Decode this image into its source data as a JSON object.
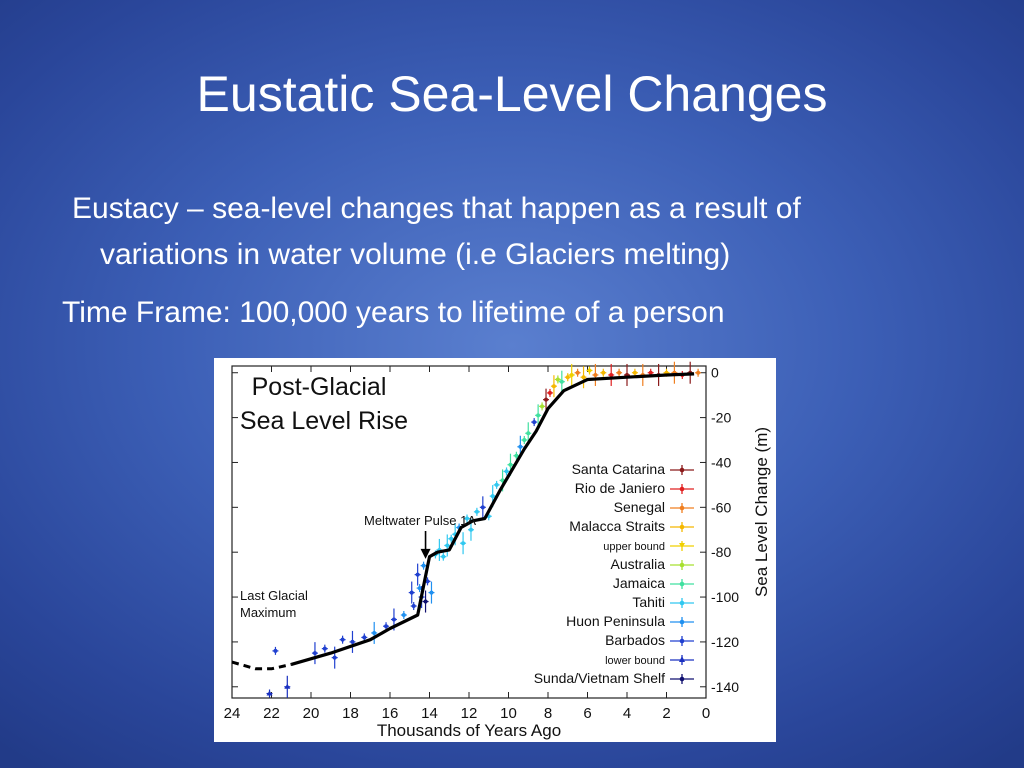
{
  "slide": {
    "title": "Eustatic Sea-Level Changes",
    "bullet_1_line_1": "Eustacy – sea-level changes that happen as a result of",
    "bullet_1_line_2": "variations in water volume (i.e Glaciers melting)",
    "bullet_2": "Time Frame: 100,000 years to lifetime of a person"
  },
  "chart_data": {
    "type": "scatter",
    "title": "Post-Glacial Sea Level Rise",
    "xlabel": "Thousands of Years Ago",
    "ylabel": "Sea Level Change (m)",
    "xlim": [
      24,
      0
    ],
    "ylim": [
      -145,
      3
    ],
    "x_ticks": [
      24,
      22,
      20,
      18,
      16,
      14,
      12,
      10,
      8,
      6,
      4,
      2,
      0
    ],
    "y_ticks": [
      0,
      -20,
      -40,
      -60,
      -80,
      -100,
      -120,
      -140
    ],
    "annotations": [
      {
        "text": "Meltwater Pulse 1A",
        "x": 14.2,
        "y": -83
      },
      {
        "text_lines": [
          "Last Glacial",
          "Maximum"
        ],
        "x": 21,
        "y": -125
      }
    ],
    "legend": [
      {
        "label": "Santa Catarina",
        "color": "#8b1a1a"
      },
      {
        "label": "Rio de Janiero",
        "color": "#e02020"
      },
      {
        "label": "Senegal",
        "color": "#f07f20"
      },
      {
        "label": "Malacca Straits",
        "color": "#f5b800"
      },
      {
        "label": "upper bound",
        "color": "#f0d000",
        "small": true
      },
      {
        "label": "Australia",
        "color": "#a8e030"
      },
      {
        "label": "Jamaica",
        "color": "#40e0a0"
      },
      {
        "label": "Tahiti",
        "color": "#30c8f0"
      },
      {
        "label": "Huon Peninsula",
        "color": "#2090f0"
      },
      {
        "label": "Barbados",
        "color": "#2040d0"
      },
      {
        "label": "lower bound",
        "color": "#1a30c0",
        "small": true
      },
      {
        "label": "Sunda/Vietnam Shelf",
        "color": "#101070"
      }
    ],
    "trend_solid": [
      [
        21,
        -130
      ],
      [
        19,
        -125
      ],
      [
        17,
        -119
      ],
      [
        16,
        -114
      ],
      [
        14.6,
        -108
      ],
      [
        14.3,
        -95
      ],
      [
        14,
        -82
      ],
      [
        13.6,
        -80
      ],
      [
        13,
        -79
      ],
      [
        12.4,
        -69
      ],
      [
        11.8,
        -66
      ],
      [
        11.2,
        -65
      ],
      [
        10.4,
        -52
      ],
      [
        9.2,
        -34
      ],
      [
        8.6,
        -26
      ],
      [
        8,
        -16
      ],
      [
        7.2,
        -8
      ],
      [
        6,
        -3
      ],
      [
        4,
        -2
      ],
      [
        2,
        -1
      ],
      [
        0.6,
        -0.5
      ]
    ],
    "trend_dashed": [
      [
        24,
        -129
      ],
      [
        22.8,
        -132
      ],
      [
        22,
        -132
      ],
      [
        21,
        -130
      ]
    ],
    "points": [
      {
        "x": 21.8,
        "y": -124,
        "c": 9
      },
      {
        "x": 21.2,
        "y": -140,
        "c": 10
      },
      {
        "x": 22.1,
        "y": -143,
        "c": 10
      },
      {
        "x": 19.8,
        "y": -125,
        "c": 9
      },
      {
        "x": 19.3,
        "y": -123,
        "c": 9
      },
      {
        "x": 18.8,
        "y": -127,
        "c": 9
      },
      {
        "x": 18.4,
        "y": -119,
        "c": 9
      },
      {
        "x": 17.9,
        "y": -120,
        "c": 9
      },
      {
        "x": 17.3,
        "y": -118,
        "c": 9
      },
      {
        "x": 16.8,
        "y": -116,
        "c": 8
      },
      {
        "x": 16.2,
        "y": -113,
        "c": 9
      },
      {
        "x": 15.8,
        "y": -110,
        "c": 9
      },
      {
        "x": 15.3,
        "y": -108,
        "c": 8
      },
      {
        "x": 14.9,
        "y": -98,
        "c": 9
      },
      {
        "x": 14.8,
        "y": -104,
        "c": 9
      },
      {
        "x": 14.6,
        "y": -90,
        "c": 9
      },
      {
        "x": 14.5,
        "y": -96,
        "c": 8
      },
      {
        "x": 14.4,
        "y": -100,
        "c": 9
      },
      {
        "x": 14.3,
        "y": -86,
        "c": 8
      },
      {
        "x": 14.2,
        "y": -102,
        "c": 11
      },
      {
        "x": 14.1,
        "y": -93,
        "c": 9
      },
      {
        "x": 13.9,
        "y": -98,
        "c": 8
      },
      {
        "x": 13.7,
        "y": -81,
        "c": 7
      },
      {
        "x": 13.5,
        "y": -79,
        "c": 7
      },
      {
        "x": 13.3,
        "y": -82,
        "c": 7
      },
      {
        "x": 13.1,
        "y": -77,
        "c": 7
      },
      {
        "x": 12.9,
        "y": -74,
        "c": 7
      },
      {
        "x": 12.7,
        "y": -72,
        "c": 7
      },
      {
        "x": 12.5,
        "y": -69,
        "c": 8
      },
      {
        "x": 12.3,
        "y": -76,
        "c": 7
      },
      {
        "x": 12.1,
        "y": -65,
        "c": 7
      },
      {
        "x": 11.9,
        "y": -70,
        "c": 7
      },
      {
        "x": 11.6,
        "y": -62,
        "c": 7
      },
      {
        "x": 11.3,
        "y": -60,
        "c": 9
      },
      {
        "x": 11.0,
        "y": -64,
        "c": 7
      },
      {
        "x": 10.8,
        "y": -55,
        "c": 7
      },
      {
        "x": 10.6,
        "y": -50,
        "c": 7
      },
      {
        "x": 10.3,
        "y": -48,
        "c": 6
      },
      {
        "x": 10.1,
        "y": -44,
        "c": 7
      },
      {
        "x": 9.9,
        "y": -41,
        "c": 6
      },
      {
        "x": 9.6,
        "y": -37,
        "c": 6
      },
      {
        "x": 9.4,
        "y": -33,
        "c": 8
      },
      {
        "x": 9.2,
        "y": -30,
        "c": 6
      },
      {
        "x": 9.0,
        "y": -27,
        "c": 6
      },
      {
        "x": 8.7,
        "y": -22,
        "c": 9
      },
      {
        "x": 8.5,
        "y": -19,
        "c": 6
      },
      {
        "x": 8.3,
        "y": -15,
        "c": 5
      },
      {
        "x": 8.1,
        "y": -12,
        "c": 0
      },
      {
        "x": 7.9,
        "y": -9,
        "c": 1
      },
      {
        "x": 7.7,
        "y": -6,
        "c": 3
      },
      {
        "x": 7.5,
        "y": -3,
        "c": 5
      },
      {
        "x": 7.3,
        "y": -4,
        "c": 6
      },
      {
        "x": 7.0,
        "y": -2,
        "c": 3
      },
      {
        "x": 6.8,
        "y": -1,
        "c": 4
      },
      {
        "x": 6.5,
        "y": 0,
        "c": 2
      },
      {
        "x": 6.2,
        "y": -2,
        "c": 3
      },
      {
        "x": 5.9,
        "y": 1,
        "c": 4
      },
      {
        "x": 5.6,
        "y": -1,
        "c": 2
      },
      {
        "x": 5.2,
        "y": 0,
        "c": 3
      },
      {
        "x": 4.8,
        "y": -1,
        "c": 1
      },
      {
        "x": 4.4,
        "y": 0,
        "c": 2
      },
      {
        "x": 4.0,
        "y": -1,
        "c": 0
      },
      {
        "x": 3.6,
        "y": 0,
        "c": 3
      },
      {
        "x": 3.2,
        "y": -1,
        "c": 2
      },
      {
        "x": 2.8,
        "y": 0,
        "c": 1
      },
      {
        "x": 2.4,
        "y": -1,
        "c": 0
      },
      {
        "x": 2.0,
        "y": 0,
        "c": 3
      },
      {
        "x": 1.6,
        "y": 0,
        "c": 2
      },
      {
        "x": 1.2,
        "y": -1,
        "c": 1
      },
      {
        "x": 0.8,
        "y": 0,
        "c": 0
      },
      {
        "x": 0.4,
        "y": 0,
        "c": 2
      }
    ]
  }
}
